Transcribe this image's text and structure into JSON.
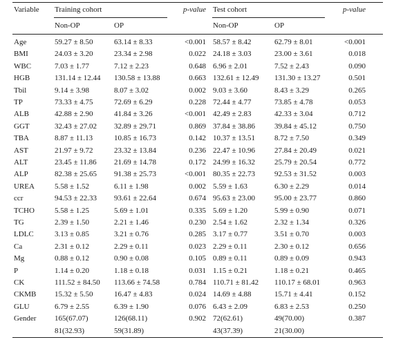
{
  "header": {
    "variable": "Variable",
    "training_cohort": "Training cohort",
    "p_value_1": "p-value",
    "test_cohort": "Test cohort",
    "p_value_2": "p-value",
    "non_op_1": "Non-OP",
    "op_1": "OP",
    "non_op_2": "Non-OP",
    "op_2": "OP"
  },
  "rows": [
    {
      "variable": "Age",
      "train_nonop": "59.27 ± 8.50",
      "train_op": "63.14 ± 8.33",
      "train_p": "<0.001",
      "test_nonop": "58.57 ± 8.42",
      "test_op": "62.79 ± 8.01",
      "test_p": "<0.001"
    },
    {
      "variable": "BMI",
      "train_nonop": "24.03 ± 3.20",
      "train_op": "23.34 ± 2.98",
      "train_p": "0.022",
      "test_nonop": "24.18 ± 3.03",
      "test_op": "23.00 ± 3.61",
      "test_p": "0.018"
    },
    {
      "variable": "WBC",
      "train_nonop": "7.03 ± 1.77",
      "train_op": "7.12 ± 2.23",
      "train_p": "0.648",
      "test_nonop": "6.96 ± 2.01",
      "test_op": "7.52 ± 2.43",
      "test_p": "0.090"
    },
    {
      "variable": "HGB",
      "train_nonop": "131.14 ± 12.44",
      "train_op": "130.58 ± 13.88",
      "train_p": "0.663",
      "test_nonop": "132.61 ± 12.49",
      "test_op": "131.30 ± 13.27",
      "test_p": "0.501"
    },
    {
      "variable": "Tbil",
      "train_nonop": "9.14 ± 3.98",
      "train_op": "8.07 ± 3.02",
      "train_p": "0.002",
      "test_nonop": "9.03 ± 3.60",
      "test_op": "8.43 ± 3.29",
      "test_p": "0.265"
    },
    {
      "variable": "TP",
      "train_nonop": "73.33 ± 4.75",
      "train_op": "72.69 ± 6.29",
      "train_p": "0.228",
      "test_nonop": "72.44 ± 4.77",
      "test_op": "73.85 ± 4.78",
      "test_p": "0.053"
    },
    {
      "variable": "ALB",
      "train_nonop": "42.88 ± 2.90",
      "train_op": "41.84 ± 3.26",
      "train_p": "<0.001",
      "test_nonop": "42.49 ± 2.83",
      "test_op": "42.33 ± 3.04",
      "test_p": "0.712"
    },
    {
      "variable": "GGT",
      "train_nonop": "32.43 ± 27.02",
      "train_op": "32.89 ± 29.71",
      "train_p": "0.869",
      "test_nonop": "37.84 ± 38.86",
      "test_op": "39.84 ± 45.12",
      "test_p": "0.750"
    },
    {
      "variable": "TBA",
      "train_nonop": "8.87 ± 11.13",
      "train_op": "10.85 ± 16.73",
      "train_p": "0.142",
      "test_nonop": "10.37 ± 13.51",
      "test_op": "8.72 ± 7.50",
      "test_p": "0.349"
    },
    {
      "variable": "AST",
      "train_nonop": "21.97 ± 9.72",
      "train_op": "23.32 ± 13.84",
      "train_p": "0.236",
      "test_nonop": "22.47 ± 10.96",
      "test_op": "27.84 ± 20.49",
      "test_p": "0.021"
    },
    {
      "variable": "ALT",
      "train_nonop": "23.45 ± 11.86",
      "train_op": "21.69 ± 14.78",
      "train_p": "0.172",
      "test_nonop": "24.99 ± 16.32",
      "test_op": "25.79 ± 20.54",
      "test_p": "0.772"
    },
    {
      "variable": "ALP",
      "train_nonop": "82.38 ± 25.65",
      "train_op": "91.38 ± 25.73",
      "train_p": "<0.001",
      "test_nonop": "80.35 ± 22.73",
      "test_op": "92.53 ± 31.52",
      "test_p": "0.003"
    },
    {
      "variable": "UREA",
      "train_nonop": "5.58 ± 1.52",
      "train_op": "6.11 ± 1.98",
      "train_p": "0.002",
      "test_nonop": "5.59 ± 1.63",
      "test_op": "6.30 ± 2.29",
      "test_p": "0.014"
    },
    {
      "variable": "ccr",
      "train_nonop": "94.53 ± 22.33",
      "train_op": "93.61 ± 22.64",
      "train_p": "0.674",
      "test_nonop": "95.63 ± 23.00",
      "test_op": "95.00 ± 23.77",
      "test_p": "0.860"
    },
    {
      "variable": "TCHO",
      "train_nonop": "5.58 ± 1.25",
      "train_op": "5.69 ± 1.01",
      "train_p": "0.335",
      "test_nonop": "5.69 ± 1.20",
      "test_op": "5.99 ± 0.90",
      "test_p": "0.071"
    },
    {
      "variable": "TG",
      "train_nonop": "2.39 ± 1.50",
      "train_op": "2.21 ± 1.46",
      "train_p": "0.230",
      "test_nonop": "2.54 ± 1.62",
      "test_op": "2.32 ± 1.34",
      "test_p": "0.326"
    },
    {
      "variable": "LDLC",
      "train_nonop": "3.13 ± 0.85",
      "train_op": "3.21 ± 0.76",
      "train_p": "0.285",
      "test_nonop": "3.17 ± 0.77",
      "test_op": "3.51 ± 0.70",
      "test_p": "0.003"
    },
    {
      "variable": "Ca",
      "train_nonop": "2.31 ± 0.12",
      "train_op": "2.29 ± 0.11",
      "train_p": "0.023",
      "test_nonop": "2.29 ± 0.11",
      "test_op": "2.30 ± 0.12",
      "test_p": "0.656"
    },
    {
      "variable": "Mg",
      "train_nonop": "0.88 ± 0.12",
      "train_op": "0.90 ± 0.08",
      "train_p": "0.105",
      "test_nonop": "0.89 ± 0.11",
      "test_op": "0.89 ± 0.09",
      "test_p": "0.943"
    },
    {
      "variable": "P",
      "train_nonop": "1.14 ± 0.20",
      "train_op": "1.18 ± 0.18",
      "train_p": "0.031",
      "test_nonop": "1.15 ± 0.21",
      "test_op": "1.18 ± 0.21",
      "test_p": "0.465"
    },
    {
      "variable": "CK",
      "train_nonop": "111.52 ± 84.50",
      "train_op": "113.66 ± 74.58",
      "train_p": "0.784",
      "test_nonop": "110.71 ± 81.42",
      "test_op": "110.17 ± 68.01",
      "test_p": "0.963"
    },
    {
      "variable": "CKMB",
      "train_nonop": "15.32 ± 5.50",
      "train_op": "16.47 ± 4.83",
      "train_p": "0.024",
      "test_nonop": "14.69 ± 4.88",
      "test_op": "15.71 ± 4.41",
      "test_p": "0.152"
    },
    {
      "variable": "GLU",
      "train_nonop": "6.79 ± 2.55",
      "train_op": "6.39 ± 1.90",
      "train_p": "0.076",
      "test_nonop": "6.43 ± 2.09",
      "test_op": "6.83 ± 2.53",
      "test_p": "0.250"
    },
    {
      "variable": "Gender",
      "train_nonop": "165(67.07)",
      "train_op": "126(68.11)",
      "train_p": "0.902",
      "test_nonop": "72(62.61)",
      "test_op": "49(70.00)",
      "test_p": "0.387"
    },
    {
      "variable": "",
      "train_nonop": "81(32.93)",
      "train_op": "59(31.89)",
      "train_p": "",
      "test_nonop": "43(37.39)",
      "test_op": "21(30.00)",
      "test_p": ""
    }
  ]
}
